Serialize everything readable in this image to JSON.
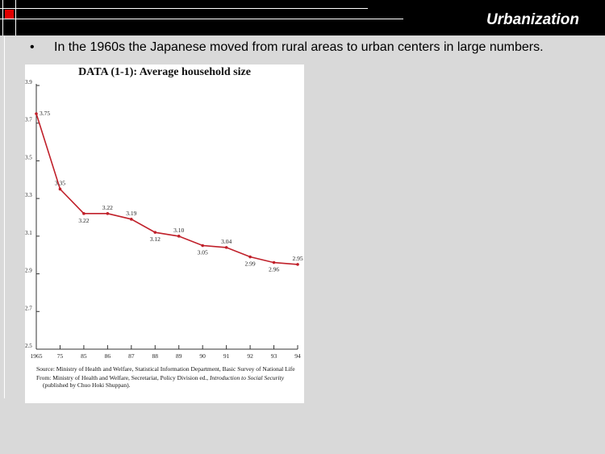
{
  "slide": {
    "title": "Urbanization",
    "bullet_marker": "•",
    "bullet_text": "In the 1960s the Japanese moved from rural areas to urban centers in large numbers."
  },
  "colors": {
    "header_bg": "#000000",
    "accent": "#e00000",
    "line": "#c0202a",
    "slide_bg": "#d9d9d9"
  },
  "chart_data": {
    "type": "line",
    "title": "DATA (1-1): Average household size",
    "xlabel": "",
    "ylabel": "",
    "categories": [
      "1965",
      "75",
      "85",
      "86",
      "87",
      "88",
      "89",
      "90",
      "91",
      "92",
      "93",
      "94"
    ],
    "values": [
      3.75,
      3.35,
      3.22,
      3.22,
      3.19,
      3.12,
      3.1,
      3.05,
      3.04,
      2.99,
      2.96,
      2.95
    ],
    "data_labels": [
      "3.75",
      "3.35",
      "3.22",
      "3.22",
      "3.19",
      "3.12",
      "3.10",
      "3.05",
      "3.04",
      "2.99",
      "2.96",
      "2.95"
    ],
    "yticks": [
      "2.5",
      "2.7",
      "2.9",
      "3.1",
      "3.3",
      "3.5",
      "3.7",
      "3.9"
    ],
    "ylim": [
      2.5,
      3.9
    ],
    "grid": false,
    "legend": "none"
  },
  "source_note": {
    "source": "Source: Ministry of Health and Welfare, Statistical Information Department, Basic Survey of National Life",
    "from_prefix": "From: Ministry of Health and Welfare, Secretariat, Policy Division ed., ",
    "from_title": "Introduction to Social Security",
    "from_suffix": " (published by Chuo Hoki Shuppan)."
  }
}
